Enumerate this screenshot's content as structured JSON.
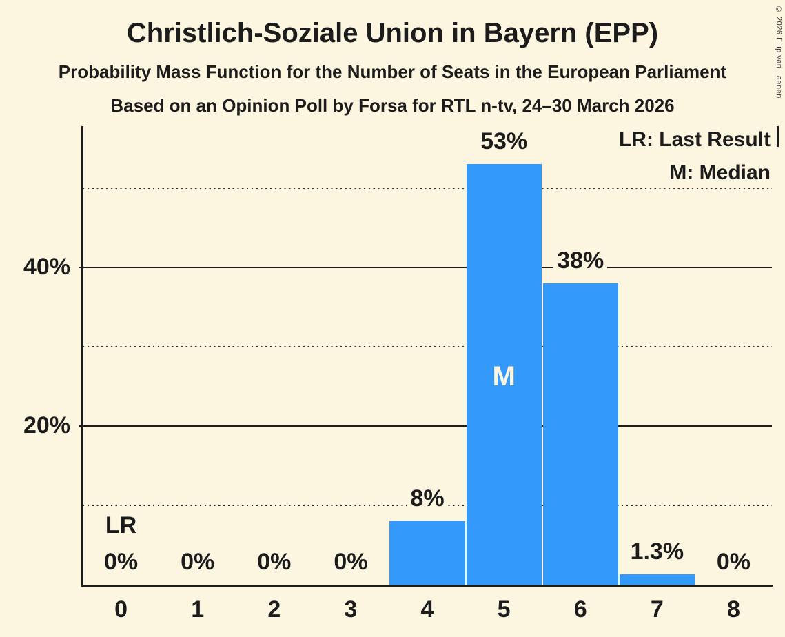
{
  "header": {
    "title": "Christlich-Soziale Union in Bayern (EPP)",
    "subtitle1": "Probability Mass Function for the Number of Seats in the European Parliament",
    "subtitle2": "Based on an Opinion Poll by Forsa for RTL n-tv, 24–30 March 2026"
  },
  "copyright": "© 2026 Filip van Laenen",
  "legend": {
    "last_result": "LR: Last Result",
    "median": "M: Median"
  },
  "colors": {
    "background": "#FCF5DF",
    "bar": "#3399FA",
    "text": "#1C1C1C"
  },
  "annotations": {
    "last_result_text": "LR",
    "last_result_seat": 0,
    "median_text": "M",
    "median_seat": 5
  },
  "chart_data": {
    "type": "bar",
    "title": "Christlich-Soziale Union in Bayern (EPP)",
    "xlabel": "",
    "ylabel": "",
    "categories": [
      "0",
      "1",
      "2",
      "3",
      "4",
      "5",
      "6",
      "7",
      "8"
    ],
    "values": [
      0,
      0,
      0,
      0,
      8,
      53,
      38,
      1.3,
      0
    ],
    "bar_labels": [
      "0%",
      "0%",
      "0%",
      "0%",
      "8%",
      "53%",
      "38%",
      "1.3%",
      "0%"
    ],
    "ylim": [
      0,
      57.8
    ],
    "y_ticks": [
      {
        "value": 20,
        "label": "20%"
      },
      {
        "value": 40,
        "label": "40%"
      }
    ],
    "solid_gridlines": [
      20,
      40
    ],
    "dotted_gridlines": [
      10,
      30,
      50
    ],
    "legend_position": "top-right",
    "grid": true
  }
}
